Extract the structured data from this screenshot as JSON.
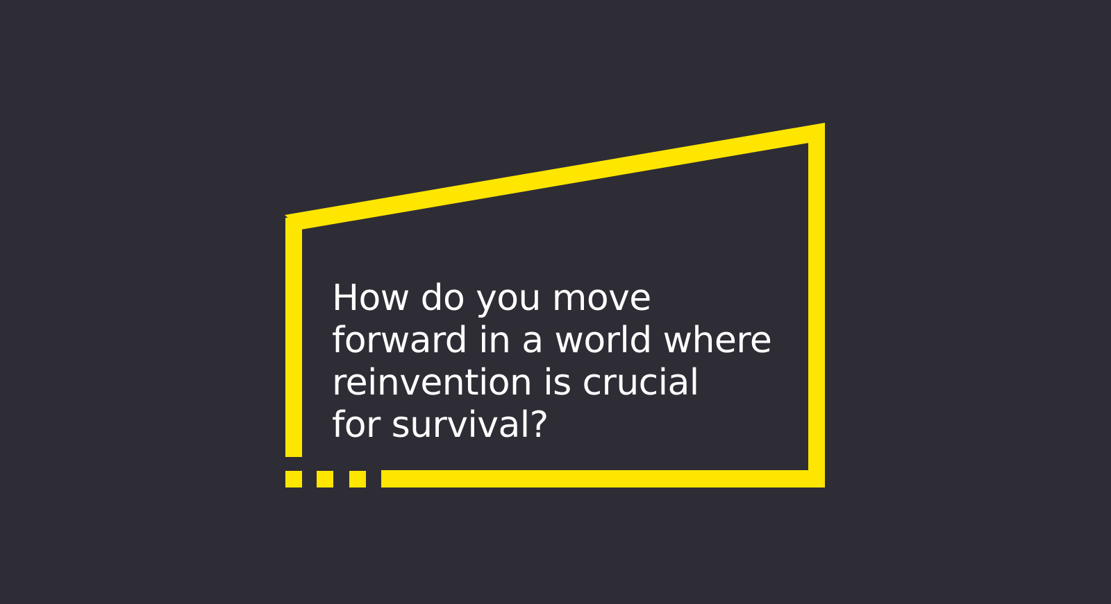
{
  "theme": {
    "background": "#2e2d35",
    "accent": "#ffe600",
    "text_color": "#ffffff"
  },
  "headline": {
    "lines": [
      "How do you move",
      "forward in a world where",
      "reinvention is crucial",
      "for survival?"
    ]
  },
  "decoration": {
    "icon": "ey-beam-frame-icon"
  }
}
